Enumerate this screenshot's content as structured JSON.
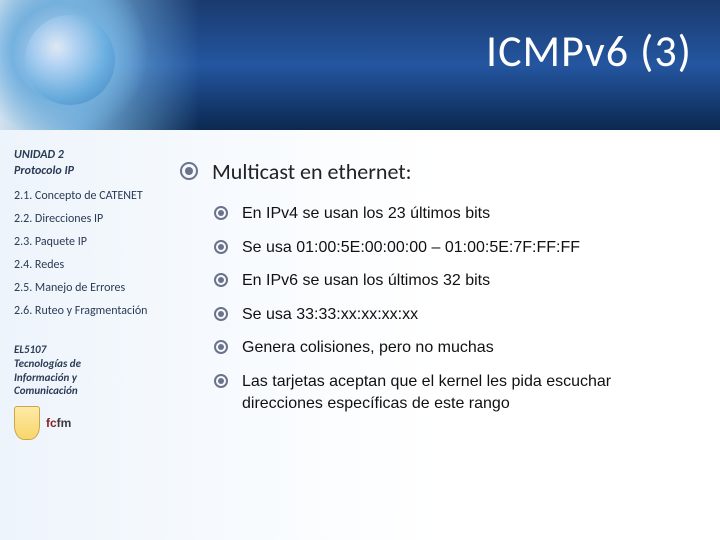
{
  "title": "ICMPv6 (3)",
  "sidebar": {
    "unit_line1": "UNIDAD 2",
    "unit_line2": "Protocolo IP",
    "items": [
      "2.1.  Concepto de CATENET",
      "2.2.  Direcciones IP",
      "2.3.  Paquete IP",
      "2.4.  Redes",
      "2.5.  Manejo de Errores",
      "2.6. Ruteo y Fragmentación"
    ],
    "footer_lines": [
      "EL5107",
      "Tecnologías de",
      "Información  y",
      "Comunicación"
    ]
  },
  "main": {
    "heading": "Multicast en ethernet:",
    "sub_items": [
      "En IPv4 se usan los 23 últimos bits",
      "Se usa 01:00:5E:00:00:00 – 01:00:5E:7F:FF:FF",
      "En IPv6 se usan los últimos 32 bits",
      "Se usa 33:33:xx:xx:xx:xx",
      "Genera colisiones, pero no muchas",
      "Las tarjetas aceptan que el kernel les pida escuchar direcciones específicas de este rango"
    ]
  }
}
